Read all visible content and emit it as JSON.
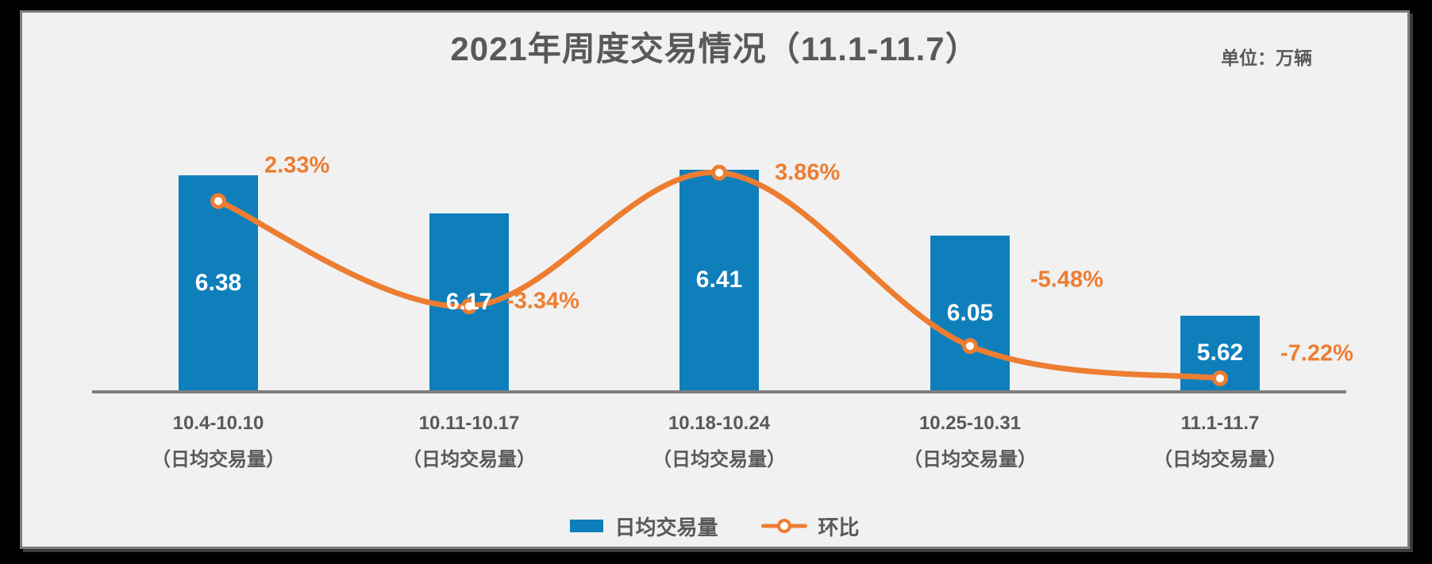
{
  "title": "2021年周度交易情况（11.1-11.7）",
  "unit_label": "单位：万辆",
  "legend": {
    "bar_label": "日均交易量",
    "line_label": "环比"
  },
  "colors": {
    "bar": "#0F7FBC",
    "line": "#ED7D31",
    "text_dark": "#595959",
    "bar_value_text": "#FFFFFF",
    "axis": "#7F7F7F",
    "background": "#F1F1F1",
    "frame_outer": "#000000"
  },
  "chart_data": {
    "type": "bar",
    "subtype": "combo bar + smoothed line, dual hidden axes",
    "title": "2021年周度交易情况（11.1-11.7）",
    "unit": "万辆",
    "categories": [
      "10.4-10.10",
      "10.11-10.17",
      "10.18-10.24",
      "10.25-10.31",
      "11.1-11.7"
    ],
    "category_sublabel": "（日均交易量）",
    "series": [
      {
        "name": "日均交易量",
        "type": "bar",
        "values": [
          6.38,
          6.17,
          6.41,
          6.05,
          5.62
        ],
        "labels": [
          "6.38",
          "6.17",
          "6.41",
          "6.05",
          "5.62"
        ]
      },
      {
        "name": "环比",
        "type": "line",
        "values": [
          2.33,
          -3.34,
          3.86,
          -5.48,
          -7.22
        ],
        "labels": [
          "2.33%",
          "-3.34%",
          "3.86%",
          "-5.48%",
          "-7.22%"
        ]
      }
    ],
    "bar_axis_range_estimate": [
      5.2,
      6.6
    ],
    "line_axis_range_estimate": [
      -9,
      6
    ],
    "grid": false,
    "legend_position": "bottom",
    "value_labels_visible": true
  }
}
